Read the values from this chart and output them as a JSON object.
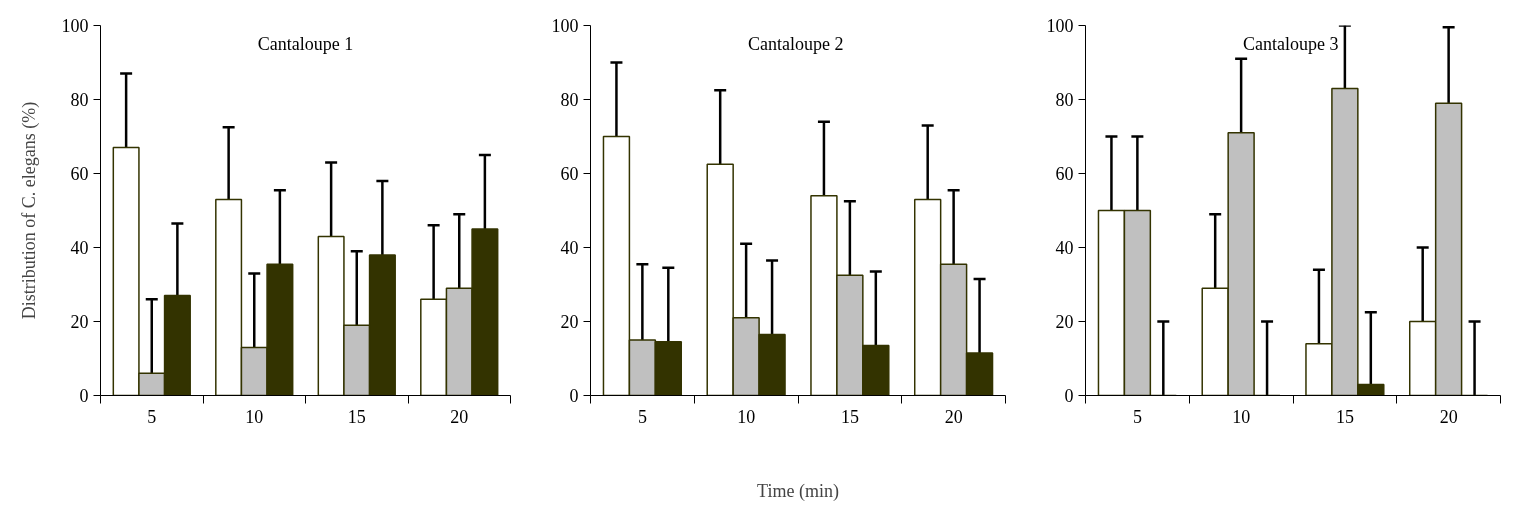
{
  "chart_data": [
    {
      "type": "bar",
      "title": "Cantaloupe 1",
      "ylabel": "Distribution of C. elegans (%)",
      "categories": [
        "5",
        "10",
        "15",
        "20"
      ],
      "ylim": [
        0,
        100
      ],
      "yticks": [
        0,
        20,
        40,
        60,
        80,
        100
      ],
      "series": [
        {
          "color": "#ffffff",
          "values": [
            67,
            53,
            43,
            26
          ],
          "errors": [
            [
              67,
              87
            ],
            [
              53,
              72.5
            ],
            [
              43,
              63
            ],
            [
              26,
              46
            ]
          ]
        },
        {
          "color": "#c0c0c0",
          "values": [
            6,
            13,
            19,
            29
          ],
          "errors": [
            [
              6,
              26
            ],
            [
              13,
              33
            ],
            [
              19,
              39
            ],
            [
              29,
              49
            ]
          ]
        },
        {
          "color": "#333300",
          "values": [
            27,
            35.5,
            38,
            45
          ],
          "errors": [
            [
              27,
              46.5
            ],
            [
              35.5,
              55.5
            ],
            [
              38,
              58
            ],
            [
              45,
              65
            ]
          ]
        }
      ]
    },
    {
      "type": "bar",
      "title": "Cantaloupe  2",
      "xlabel": "Time (min)",
      "categories": [
        "5",
        "10",
        "15",
        "20"
      ],
      "ylim": [
        0,
        100
      ],
      "yticks": [
        0,
        20,
        40,
        60,
        80,
        100
      ],
      "series": [
        {
          "color": "#ffffff",
          "values": [
            70,
            62.5,
            54,
            53
          ],
          "errors": [
            [
              70,
              90
            ],
            [
              62.5,
              82.5
            ],
            [
              54,
              74
            ],
            [
              53,
              73
            ]
          ]
        },
        {
          "color": "#c0c0c0",
          "values": [
            15,
            21,
            32.5,
            35.5
          ],
          "errors": [
            [
              15,
              35.5
            ],
            [
              21,
              41
            ],
            [
              32.5,
              52.5
            ],
            [
              35.5,
              55.5
            ]
          ]
        },
        {
          "color": "#333300",
          "values": [
            14.5,
            16.5,
            13.5,
            11.5
          ],
          "errors": [
            [
              14.5,
              34.5
            ],
            [
              16.5,
              36.5
            ],
            [
              13.5,
              33.5
            ],
            [
              11.5,
              31.5
            ]
          ]
        }
      ]
    },
    {
      "type": "bar",
      "title": "Cantaloupe  3",
      "categories": [
        "5",
        "10",
        "15",
        "20"
      ],
      "ylim": [
        0,
        100
      ],
      "yticks": [
        0,
        20,
        40,
        60,
        80,
        100
      ],
      "series": [
        {
          "color": "#ffffff",
          "values": [
            50,
            29,
            14,
            20
          ],
          "errors": [
            [
              50,
              70
            ],
            [
              29,
              49
            ],
            [
              14,
              34
            ],
            [
              20,
              40
            ]
          ]
        },
        {
          "color": "#c0c0c0",
          "values": [
            50,
            71,
            83,
            79
          ],
          "errors": [
            [
              50,
              70
            ],
            [
              71,
              91
            ],
            [
              83,
              100
            ],
            [
              79,
              99.5
            ]
          ]
        },
        {
          "color": "#333300",
          "values": [
            0,
            0,
            3,
            0
          ],
          "errors": [
            [
              0,
              20
            ],
            [
              0,
              20
            ],
            [
              3,
              22.5
            ],
            [
              0,
              20
            ]
          ]
        }
      ]
    }
  ]
}
